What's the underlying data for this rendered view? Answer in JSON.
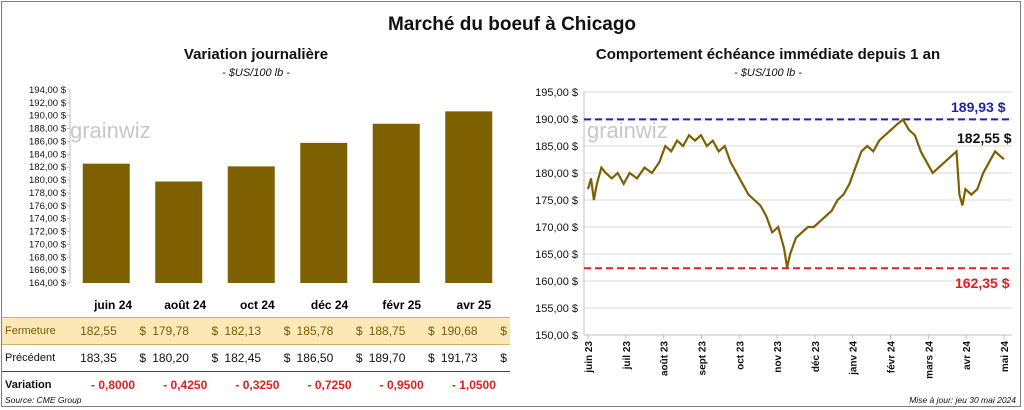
{
  "title": "Marché du boeuf à Chicago",
  "left": {
    "subtitle": "Variation  journalière",
    "unit": "- $US/100 lb -",
    "watermark": "grainwiz",
    "y_ticks": [
      "194,00 $",
      "192,00 $",
      "190,00 $",
      "188,00 $",
      "186,00 $",
      "184,00 $",
      "182,00 $",
      "180,00 $",
      "178,00 $",
      "176,00 $",
      "174,00 $",
      "172,00 $",
      "170,00 $",
      "168,00 $",
      "166,00 $",
      "164,00 $"
    ],
    "table": {
      "row_labels": {
        "fermeture": "Fermeture",
        "precedent": "Précédent",
        "variation": "Variation"
      },
      "currency": "$",
      "months": [
        "juin 24",
        "août 24",
        "oct 24",
        "déc 24",
        "févr 25",
        "avr 25"
      ],
      "fermeture": [
        "182,55",
        "179,78",
        "182,13",
        "185,78",
        "188,75",
        "190,68"
      ],
      "precedent": [
        "183,35",
        "180,20",
        "182,45",
        "186,50",
        "189,70",
        "191,73"
      ],
      "variation": [
        "- 0,8000",
        "- 0,4250",
        "- 0,3250",
        "- 0,7250",
        "- 0,9500",
        "- 1,0500"
      ]
    }
  },
  "right": {
    "subtitle": "Comportement  échéance immédiate depuis 1 an",
    "unit": "- $US/100 lb -",
    "watermark": "grainwiz",
    "y_ticks": [
      "195,00 $",
      "190,00 $",
      "185,00 $",
      "180,00 $",
      "175,00 $",
      "170,00 $",
      "165,00 $",
      "160,00 $",
      "155,00 $",
      "150,00 $"
    ],
    "x_ticks": [
      "juin 23",
      "juil 23",
      "août 23",
      "sept 23",
      "oct 23",
      "nov 23",
      "déc 23",
      "janv 24",
      "févr 24",
      "mars 24",
      "avr 24",
      "mai 24"
    ],
    "high_label": "189,93 $",
    "low_label": "162,35 $",
    "last_label": "182,55 $"
  },
  "chart_data": [
    {
      "type": "bar",
      "title": "Variation  journalière",
      "categories": [
        "juin 24",
        "août 24",
        "oct 24",
        "déc 24",
        "févr 25",
        "avr 25"
      ],
      "values": [
        182.55,
        179.78,
        182.13,
        185.78,
        188.75,
        190.68
      ],
      "ylim": [
        164,
        194
      ],
      "color": "#7f6000"
    },
    {
      "type": "line",
      "title": "Comportement  échéance immédiate depuis 1 an",
      "x": [
        "2023-06",
        "2023-07",
        "2023-08",
        "2023-09",
        "2023-10",
        "2023-11",
        "2023-12",
        "2024-01",
        "2024-02",
        "2024-03",
        "2024-04",
        "2024-05"
      ],
      "ylim": [
        150,
        195
      ],
      "high": 189.93,
      "low": 162.35,
      "last": 182.55,
      "points": [
        [
          0,
          177
        ],
        [
          2,
          179
        ],
        [
          4,
          175
        ],
        [
          6,
          178
        ],
        [
          9,
          181
        ],
        [
          12,
          180
        ],
        [
          16,
          179
        ],
        [
          20,
          180
        ],
        [
          24,
          178
        ],
        [
          28,
          180
        ],
        [
          33,
          179
        ],
        [
          38,
          181
        ],
        [
          43,
          180
        ],
        [
          48,
          182
        ],
        [
          52,
          185
        ],
        [
          56,
          184
        ],
        [
          60,
          186
        ],
        [
          64,
          185
        ],
        [
          68,
          187
        ],
        [
          72,
          186
        ],
        [
          76,
          187
        ],
        [
          80,
          185
        ],
        [
          84,
          186
        ],
        [
          88,
          184
        ],
        [
          92,
          185
        ],
        [
          96,
          182
        ],
        [
          100,
          180
        ],
        [
          104,
          178
        ],
        [
          108,
          176
        ],
        [
          112,
          175
        ],
        [
          116,
          174
        ],
        [
          120,
          172
        ],
        [
          124,
          169
        ],
        [
          128,
          170
        ],
        [
          132,
          166
        ],
        [
          134,
          162.5
        ],
        [
          136,
          165
        ],
        [
          140,
          168
        ],
        [
          144,
          169
        ],
        [
          148,
          170
        ],
        [
          152,
          170
        ],
        [
          156,
          171
        ],
        [
          160,
          172
        ],
        [
          164,
          173
        ],
        [
          168,
          175
        ],
        [
          172,
          176
        ],
        [
          176,
          178
        ],
        [
          180,
          181
        ],
        [
          184,
          184
        ],
        [
          188,
          185
        ],
        [
          192,
          184
        ],
        [
          196,
          186
        ],
        [
          200,
          187
        ],
        [
          204,
          188
        ],
        [
          208,
          189
        ],
        [
          212,
          189.9
        ],
        [
          216,
          188
        ],
        [
          220,
          187
        ],
        [
          224,
          184
        ],
        [
          228,
          182
        ],
        [
          232,
          180
        ],
        [
          236,
          181
        ],
        [
          240,
          182
        ],
        [
          244,
          183
        ],
        [
          248,
          184
        ],
        [
          250,
          176
        ],
        [
          252,
          174
        ],
        [
          254,
          177
        ],
        [
          258,
          176
        ],
        [
          262,
          177
        ],
        [
          266,
          180
        ],
        [
          270,
          182
        ],
        [
          274,
          184
        ],
        [
          278,
          183
        ],
        [
          280,
          182.55
        ]
      ]
    }
  ]
}
